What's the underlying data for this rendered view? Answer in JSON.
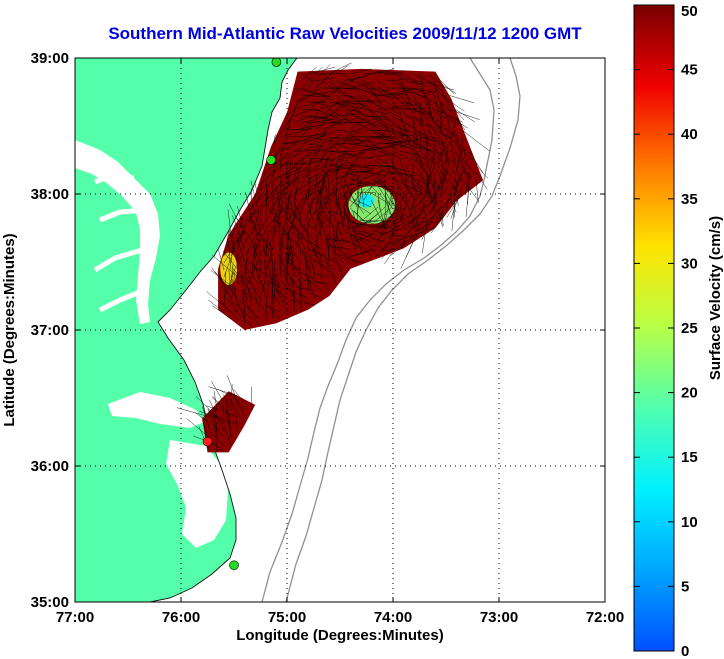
{
  "chart_data": {
    "type": "heatmap",
    "title": "Southern Mid-Atlantic Raw Velocities 2009/11/12 1200 GMT",
    "xlabel": "Longitude (Degrees:Minutes)",
    "ylabel": "Latitude (Degrees:Minutes)",
    "xlim": [
      -77,
      -72
    ],
    "ylim": [
      35,
      39
    ],
    "x_ticks": [
      {
        "value": -77,
        "label": "77:00"
      },
      {
        "value": -76,
        "label": "76:00"
      },
      {
        "value": -75,
        "label": "75:00"
      },
      {
        "value": -74,
        "label": "74:00"
      },
      {
        "value": -73,
        "label": "73:00"
      },
      {
        "value": -72,
        "label": "72:00"
      }
    ],
    "y_ticks": [
      {
        "value": 35,
        "label": "35:00"
      },
      {
        "value": 36,
        "label": "36:00"
      },
      {
        "value": 37,
        "label": "37:00"
      },
      {
        "value": 38,
        "label": "38:00"
      },
      {
        "value": 39,
        "label": "39:00"
      }
    ],
    "grid": true,
    "colorbar": {
      "label": "Surface Velocity (cm/s)",
      "range": [
        0,
        50
      ],
      "ticks": [
        "0",
        "5",
        "10",
        "15",
        "20",
        "25",
        "30",
        "35",
        "40",
        "45",
        "50"
      ]
    },
    "velocity_regions": [
      {
        "name": "main-radar-coverage",
        "value_cm_s": 50,
        "polygon": [
          [
            -74.9,
            38.9
          ],
          [
            -74.3,
            38.92
          ],
          [
            -73.6,
            38.9
          ],
          [
            -73.45,
            38.7
          ],
          [
            -73.3,
            38.4
          ],
          [
            -73.15,
            38.1
          ],
          [
            -73.4,
            37.95
          ],
          [
            -73.6,
            37.75
          ],
          [
            -73.9,
            37.6
          ],
          [
            -74.4,
            37.45
          ],
          [
            -74.6,
            37.25
          ],
          [
            -74.8,
            37.15
          ],
          [
            -75.1,
            37.05
          ],
          [
            -75.4,
            37.0
          ],
          [
            -75.65,
            37.15
          ],
          [
            -75.65,
            37.45
          ],
          [
            -75.55,
            37.7
          ],
          [
            -75.3,
            38.0
          ],
          [
            -75.15,
            38.35
          ],
          [
            -75.0,
            38.6
          ]
        ]
      },
      {
        "name": "south-radar-coverage",
        "value_cm_s": 50,
        "polygon": [
          [
            -75.8,
            36.35
          ],
          [
            -75.55,
            36.55
          ],
          [
            -75.3,
            36.45
          ],
          [
            -75.4,
            36.3
          ],
          [
            -75.55,
            36.1
          ],
          [
            -75.75,
            36.1
          ]
        ]
      },
      {
        "name": "slow-eddy-offshore",
        "value_cm_s": 22,
        "center": [
          -74.2,
          37.92
        ],
        "radius_deg": [
          0.22,
          0.14
        ]
      },
      {
        "name": "slow-eddy-core",
        "value_cm_s": 12,
        "center": [
          -74.25,
          37.95
        ],
        "radius_deg": [
          0.07,
          0.05
        ]
      },
      {
        "name": "slow-patch-nearshore",
        "value_cm_s": 30,
        "center": [
          -75.55,
          37.45
        ],
        "radius_deg": [
          0.08,
          0.12
        ]
      }
    ],
    "radar_sites": [
      {
        "name": "site-cape-henlopen",
        "lon": -75.1,
        "lat": 38.97,
        "color": "#22dd22"
      },
      {
        "name": "site-assateague",
        "lon": -75.15,
        "lat": 38.25,
        "color": "#22dd22"
      },
      {
        "name": "site-duck",
        "lon": -75.75,
        "lat": 36.18,
        "color": "#ff2020"
      },
      {
        "name": "site-hatteras",
        "lon": -75.5,
        "lat": 35.27,
        "color": "#22dd22"
      }
    ]
  }
}
